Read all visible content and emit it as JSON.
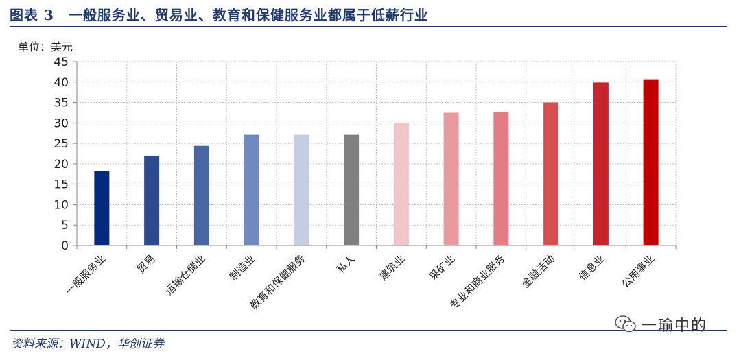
{
  "header": {
    "title": "图表 3　一般服务业、贸易业、教育和保健服务业都属于低薪行业"
  },
  "footer": {
    "source": "资料来源：WIND，华创证券",
    "watermark_text": "一瑜中的",
    "watermark_icon": "wechat-icon"
  },
  "chart_data": {
    "type": "bar",
    "unit_label": "单位：美元",
    "categories": [
      "一般服务业",
      "贸易",
      "运输仓储业",
      "制造业",
      "教育和保健服务",
      "私人",
      "建筑业",
      "采矿业",
      "专业和商业服务",
      "金融活动",
      "信息业",
      "公用事业"
    ],
    "values": [
      18.2,
      22.0,
      24.4,
      27.1,
      27.1,
      27.1,
      30.0,
      32.5,
      32.7,
      35.0,
      39.9,
      40.7
    ],
    "colors": [
      "#002b7f",
      "#2b4b8e",
      "#4a65a3",
      "#7089be",
      "#c4cde4",
      "#808080",
      "#f2c5c8",
      "#e89a9f",
      "#e37c83",
      "#d5504f",
      "#c8242b",
      "#c00000"
    ],
    "yticks": [
      0,
      5,
      10,
      15,
      20,
      25,
      30,
      35,
      40,
      45
    ],
    "ylim": [
      0,
      45
    ],
    "grid": true
  }
}
